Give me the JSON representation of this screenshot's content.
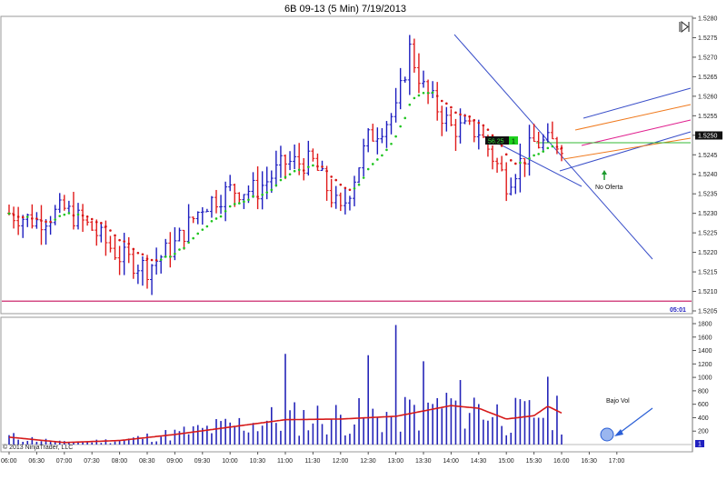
{
  "window": {
    "title": "6B 09-13 (5 Min)  7/19/2013",
    "copyright": "© 2013 NinjaTrader, LLC"
  },
  "colors": {
    "up": "#1d1dbf",
    "down": "#e01a1a",
    "sar_up": "#1ec41e",
    "sar_down": "#d61414",
    "channel": "#3a4fc9",
    "pitch_orange": "#f07a1e",
    "pitch_magenta": "#e0208f",
    "hline": "#cc2a6e",
    "volume": "#2424b8",
    "vol_avg": "#d61a1a",
    "arrow": "#2b5fd6"
  },
  "icons": {
    "panel_toggle": "panel-collapse-icon"
  },
  "chart_data": [
    {
      "type": "ohlc",
      "title": "6B 09-13 (5 Min)  7/19/2013",
      "ylim": [
        1.5205,
        1.528
      ],
      "y_ticks": [
        "1.5280",
        "1.5275",
        "1.5270",
        "1.5265",
        "1.5260",
        "1.5255",
        "1.5250",
        "1.5245",
        "1.5240",
        "1.5235",
        "1.5230",
        "1.5225",
        "1.5220",
        "1.5215",
        "1.5210",
        "1.5205"
      ],
      "x_ticks": [
        "06:00",
        "06:30",
        "07:00",
        "07:30",
        "08:00",
        "08:30",
        "09:00",
        "09:30",
        "10:00",
        "10:30",
        "11:00",
        "11:30",
        "12:00",
        "12:30",
        "13:00",
        "13:30",
        "14:00",
        "14:30",
        "15:00",
        "15:30",
        "16:00",
        "16:30",
        "17:00"
      ],
      "last_price_label": "1.5250",
      "box_label": "56.25",
      "box_value": "1",
      "session_label": "05:01",
      "annotations": [
        "No Oferta",
        "Bajo Vol"
      ],
      "ohlc_anchors": [
        {
          "t": "06:00",
          "c": 1.523
        },
        {
          "t": "06:30",
          "c": 1.5228
        },
        {
          "t": "07:00",
          "c": 1.5231
        },
        {
          "t": "07:30",
          "c": 1.5226
        },
        {
          "t": "08:00",
          "c": 1.5219
        },
        {
          "t": "08:30",
          "c": 1.5216
        },
        {
          "t": "09:00",
          "c": 1.5222
        },
        {
          "t": "09:30",
          "c": 1.5232
        },
        {
          "t": "10:00",
          "c": 1.5236
        },
        {
          "t": "10:30",
          "c": 1.5236
        },
        {
          "t": "11:00",
          "c": 1.5243
        },
        {
          "t": "11:30",
          "c": 1.5243
        },
        {
          "t": "12:00",
          "c": 1.523
        },
        {
          "t": "12:30",
          "c": 1.5249
        },
        {
          "t": "13:00",
          "c": 1.5256
        },
        {
          "t": "13:15",
          "c": 1.5272
        },
        {
          "t": "13:30",
          "c": 1.5262
        },
        {
          "t": "14:00",
          "c": 1.5252
        },
        {
          "t": "14:30",
          "c": 1.5251
        },
        {
          "t": "15:00",
          "c": 1.5238
        },
        {
          "t": "15:30",
          "c": 1.5248
        },
        {
          "t": "16:00",
          "c": 1.5248
        }
      ]
    },
    {
      "type": "bar",
      "name": "volume",
      "ylim": [
        0,
        1800
      ],
      "y_ticks": [
        "1800",
        "1600",
        "1400",
        "1200",
        "1000",
        "800",
        "600",
        "400",
        "200"
      ],
      "axis_marker": "1",
      "peaks": [
        {
          "t": "11:00",
          "v": 1350
        },
        {
          "t": "13:00",
          "v": 1780
        },
        {
          "t": "12:30",
          "v": 1330
        },
        {
          "t": "13:30",
          "v": 1240
        }
      ],
      "avg_line": [
        {
          "t": "06:00",
          "v": 110
        },
        {
          "t": "07:00",
          "v": 30
        },
        {
          "t": "08:00",
          "v": 60
        },
        {
          "t": "09:00",
          "v": 150
        },
        {
          "t": "10:00",
          "v": 260
        },
        {
          "t": "11:00",
          "v": 370
        },
        {
          "t": "12:00",
          "v": 380
        },
        {
          "t": "13:00",
          "v": 420
        },
        {
          "t": "14:00",
          "v": 580
        },
        {
          "t": "14:30",
          "v": 540
        },
        {
          "t": "15:00",
          "v": 380
        },
        {
          "t": "15:30",
          "v": 430
        },
        {
          "t": "15:45",
          "v": 570
        },
        {
          "t": "16:00",
          "v": 470
        }
      ]
    }
  ]
}
